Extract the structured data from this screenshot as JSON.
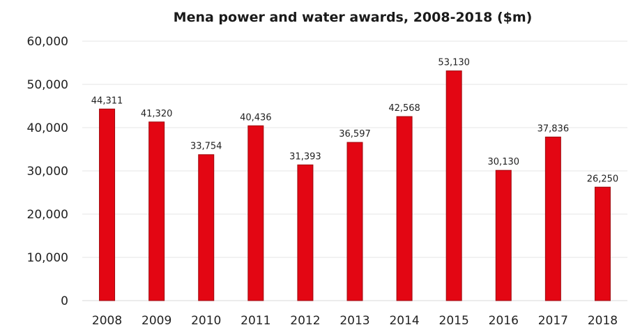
{
  "chart_data": {
    "type": "bar",
    "title": "Mena power and water awards, 2008-2018 ($m)",
    "xlabel": "",
    "ylabel": "",
    "categories": [
      "2008",
      "2009",
      "2010",
      "2011",
      "2012",
      "2013",
      "2014",
      "2015",
      "2016",
      "2017",
      "2018"
    ],
    "values": [
      44311,
      41320,
      33754,
      40436,
      31393,
      36597,
      42568,
      53130,
      30130,
      37836,
      26250
    ],
    "data_labels": [
      "44,311",
      "41,320",
      "33,754",
      "40,436",
      "31,393",
      "36,597",
      "42,568",
      "53,130",
      "30,130",
      "37,836",
      "26,250"
    ],
    "yticks": [
      0,
      10000,
      20000,
      30000,
      40000,
      50000,
      60000
    ],
    "ytick_labels": [
      "0",
      "10,000",
      "20,000",
      "30,000",
      "40,000",
      "50,000",
      "60,000"
    ],
    "ylim": [
      0,
      60000
    ],
    "grid": true,
    "legend": "none",
    "bar_color": "#e30613",
    "bar_edge_color": "#9e0a0f"
  }
}
